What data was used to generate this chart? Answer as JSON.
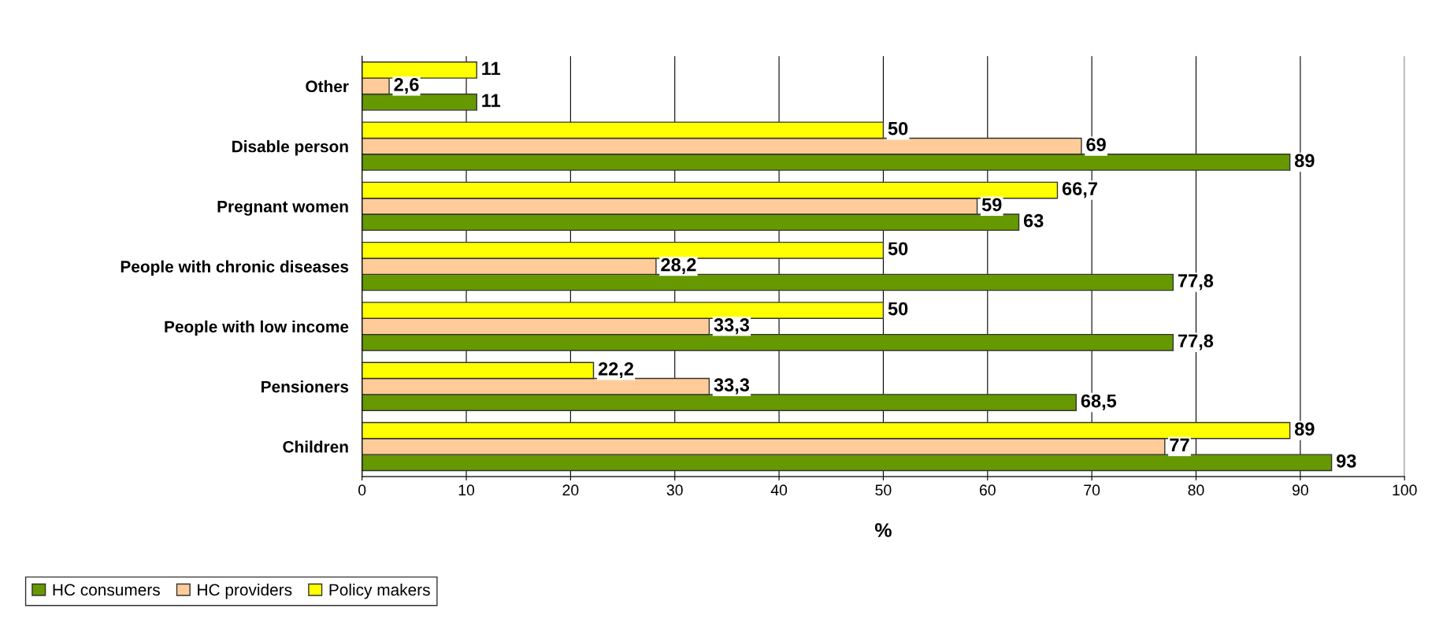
{
  "chart_data": {
    "type": "bar",
    "orientation": "horizontal",
    "xlabel": "%",
    "categories": [
      "Other",
      "Disable person",
      "Pregnant women",
      "People with chronic diseases",
      "People with low income",
      "Pensioners",
      "Children"
    ],
    "series": [
      {
        "name": "HC consumers",
        "color": "#669900",
        "values": [
          11,
          89,
          63,
          77.8,
          77.8,
          68.5,
          93
        ],
        "value_labels": [
          "11",
          "89",
          "63",
          "77,8",
          "77,8",
          "68,5",
          "93"
        ]
      },
      {
        "name": "HC providers",
        "color": "#ffcc99",
        "values": [
          2.6,
          69,
          59,
          28.2,
          33.3,
          33.3,
          77
        ],
        "value_labels": [
          "2,6",
          "69",
          "59",
          "28,2",
          "33,3",
          "33,3",
          "77"
        ]
      },
      {
        "name": "Policy makers",
        "color": "#ffff00",
        "values": [
          11,
          50,
          66.7,
          50,
          50,
          22.2,
          89
        ],
        "value_labels": [
          "11",
          "50",
          "66,7",
          "50",
          "50",
          "22,2",
          "89"
        ]
      }
    ],
    "xlim": [
      0,
      100
    ],
    "xticks": [
      0,
      10,
      20,
      30,
      40,
      50,
      60,
      70,
      80,
      90,
      100
    ],
    "grid": "x",
    "legend": "bottom left"
  }
}
